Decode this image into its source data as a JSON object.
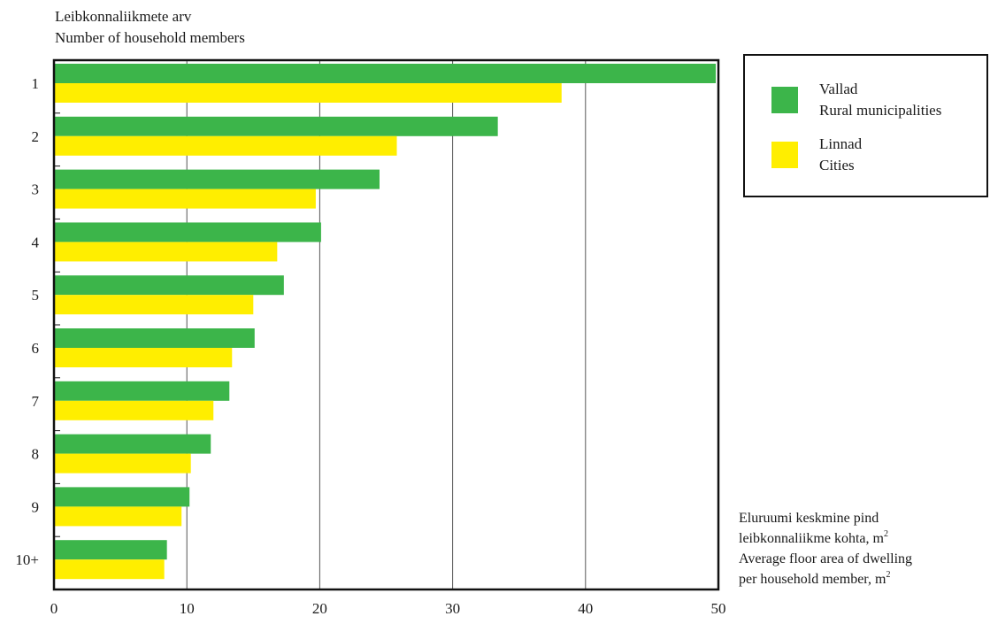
{
  "chart_data": {
    "type": "bar",
    "orientation": "horizontal",
    "title": {
      "line1": "Leibkonnaliikmete arv",
      "line2": "Number of household members"
    },
    "categories": [
      "1",
      "2",
      "3",
      "4",
      "5",
      "6",
      "7",
      "8",
      "9",
      "10+"
    ],
    "series": [
      {
        "name_et": "Vallad",
        "name_en": "Rural municipalities",
        "color": "#3cb54a",
        "values": [
          49.8,
          33.4,
          24.5,
          20.1,
          17.3,
          15.1,
          13.2,
          11.8,
          10.2,
          8.5
        ]
      },
      {
        "name_et": "Linnad",
        "name_en": "Cities",
        "color": "#ffee00",
        "values": [
          38.2,
          25.8,
          19.7,
          16.8,
          15.0,
          13.4,
          12.0,
          10.3,
          9.6,
          8.3
        ]
      }
    ],
    "xlim": [
      0,
      50
    ],
    "xticks": [
      "0",
      "10",
      "20",
      "30",
      "40",
      "50"
    ],
    "grid": true,
    "legend_position": "top-right",
    "axis_label": {
      "line1": "Eluruumi keskmine pind",
      "line2_text": "leibkonnaliikme kohta, m",
      "line3": "Average floor area of dwelling",
      "line4_text": "per household member, m",
      "superscript": "2"
    }
  }
}
